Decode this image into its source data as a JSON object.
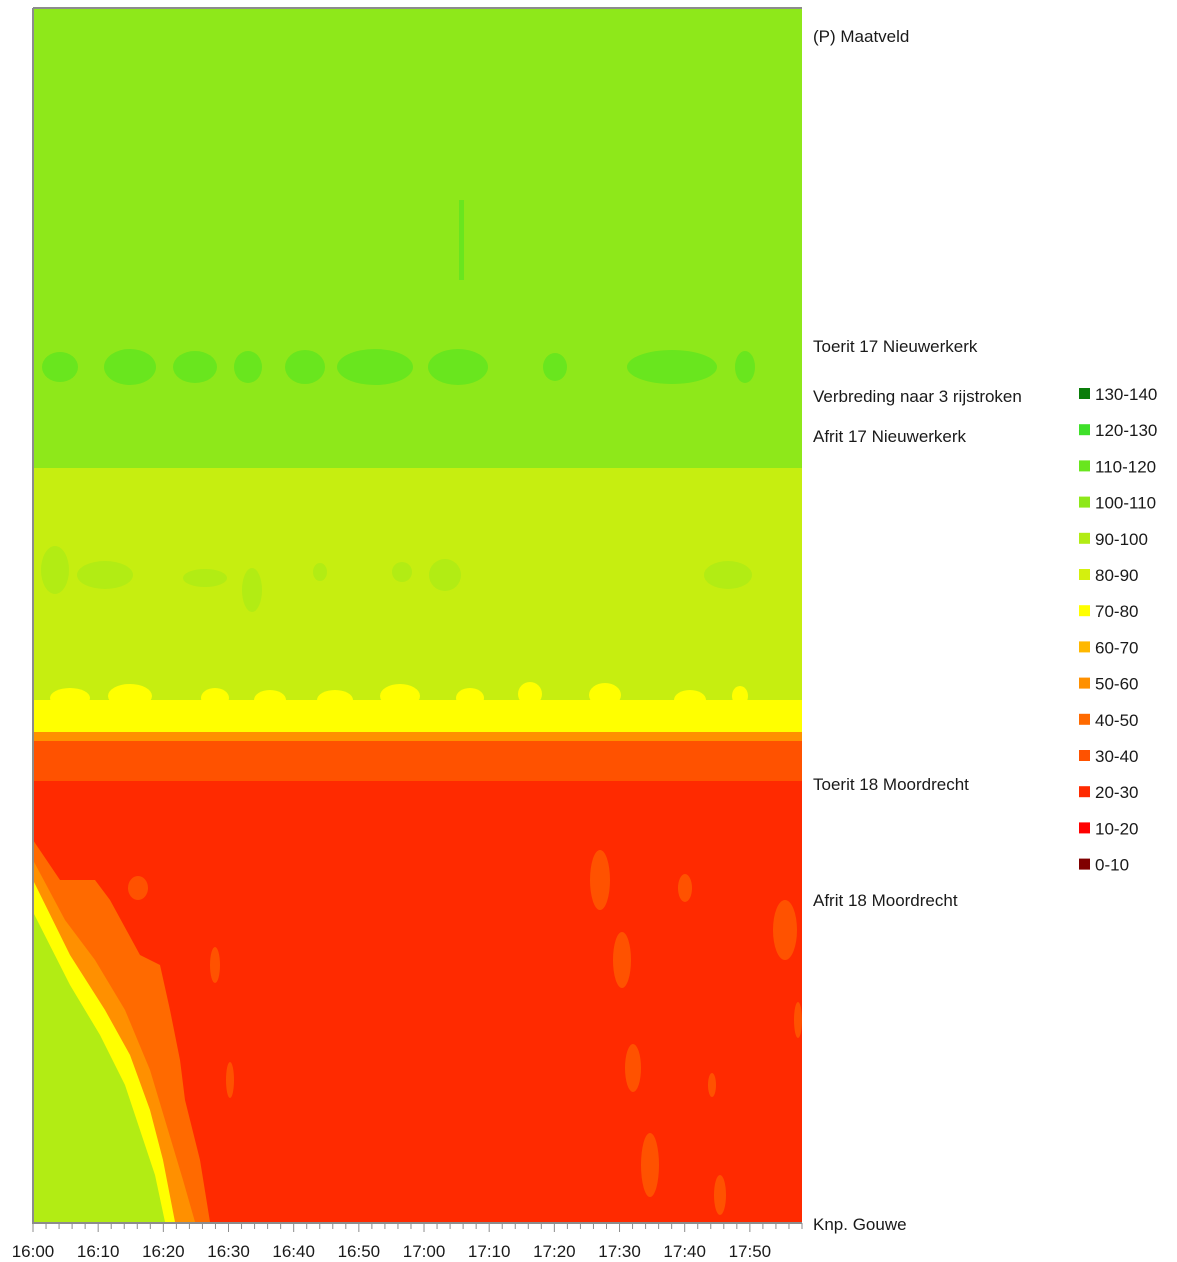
{
  "chart_data": {
    "type": "heatmap",
    "title": "",
    "xlabel": "",
    "ylabel": "",
    "x_ticks": [
      "16:00",
      "16:10",
      "16:20",
      "16:30",
      "16:40",
      "16:50",
      "17:00",
      "17:10",
      "17:20",
      "17:30",
      "17:40",
      "17:50"
    ],
    "x_range": [
      "16:00",
      "17:59"
    ],
    "locations": [
      "(P) Maatveld",
      "Toerit 17 Nieuwerkerk",
      "Verbreding naar 3 rijstroken",
      "Afrit 17 Nieuwerkerk",
      "Toerit 18 Moordrecht",
      "Afrit 18 Moordrecht",
      "Knp. Gouwe"
    ],
    "legend": [
      {
        "label": "130-140",
        "color": "#0a7d0a"
      },
      {
        "label": "120-130",
        "color": "#3fe02a"
      },
      {
        "label": "110-120",
        "color": "#69e61e"
      },
      {
        "label": "100-110",
        "color": "#8ee81a"
      },
      {
        "label": "90-100",
        "color": "#b2ec14"
      },
      {
        "label": "80-90",
        "color": "#d4f00e"
      },
      {
        "label": "70-80",
        "color": "#ffff00"
      },
      {
        "label": "60-70",
        "color": "#ffb800"
      },
      {
        "label": "50-60",
        "color": "#ff9000"
      },
      {
        "label": "40-50",
        "color": "#ff6a00"
      },
      {
        "label": "30-40",
        "color": "#ff5200"
      },
      {
        "label": "20-30",
        "color": "#ff2a00"
      },
      {
        "label": "10-20",
        "color": "#ff0000"
      },
      {
        "label": "0-10",
        "color": "#800000"
      }
    ],
    "speed_bands": [
      {
        "from": "(P) Maatveld",
        "to": "Afrit 17 Nieuwerkerk",
        "speed": "100-110"
      },
      {
        "from": "Afrit 17 Nieuwerkerk",
        "to": "Toerit 18 Moordrecht",
        "speed": "90-100"
      },
      {
        "from": "Toerit 18 Moordrecht",
        "to": "Toerit 18 Moordrecht",
        "speed": "30-40"
      },
      {
        "from": "Toerit 18 Moordrecht",
        "to": "Knp. Gouwe",
        "speed": "20-30"
      }
    ]
  }
}
